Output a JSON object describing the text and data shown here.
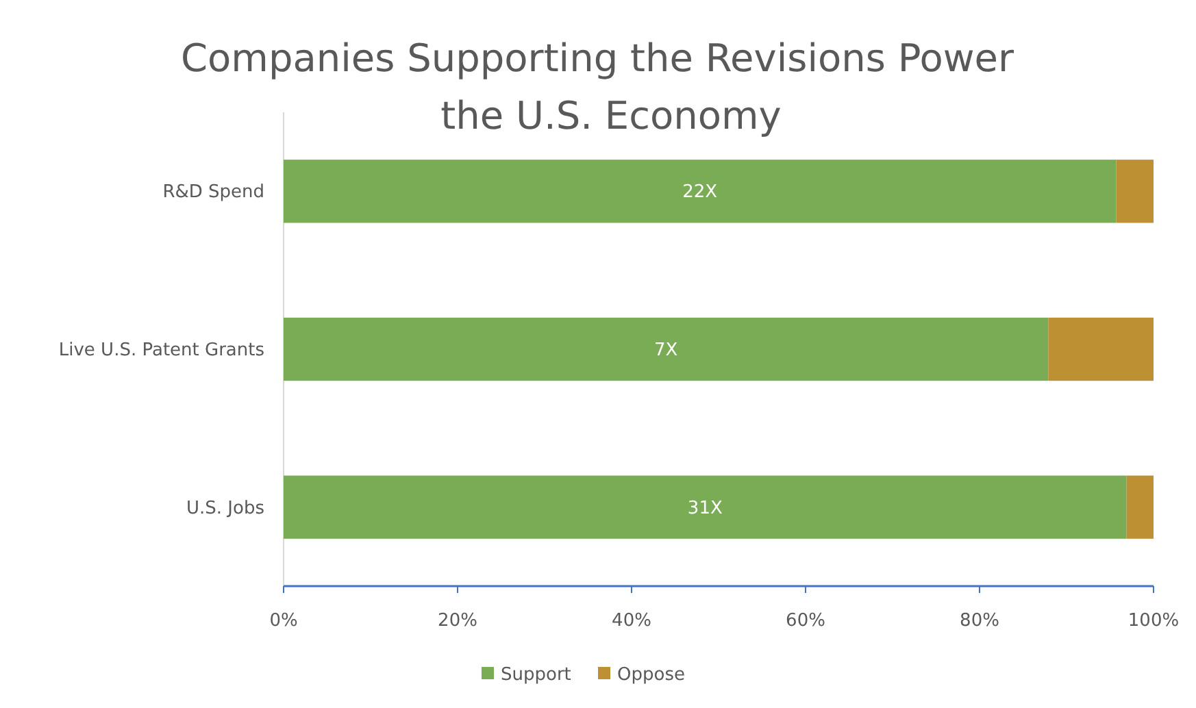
{
  "chart_data": {
    "type": "bar",
    "orientation": "horizontal",
    "stacked": true,
    "title": "Companies Supporting the Revisions Power\nthe U.S. Economy",
    "categories": [
      "R&D Spend",
      "Live U.S. Patent Grants",
      "U.S. Jobs"
    ],
    "series": [
      {
        "name": "Support",
        "color": "#7aab55",
        "values": [
          95.7,
          87.9,
          96.9
        ]
      },
      {
        "name": "Oppose",
        "color": "#bd9133",
        "values": [
          4.3,
          12.1,
          3.1
        ]
      }
    ],
    "xlim": [
      0,
      100
    ],
    "xticks": [
      {
        "value": 0,
        "label": "0%"
      },
      {
        "value": 20,
        "label": "20%"
      },
      {
        "value": 40,
        "label": "40%"
      },
      {
        "value": 60,
        "label": "60%"
      },
      {
        "value": 80,
        "label": "80%"
      },
      {
        "value": 100,
        "label": "100%"
      }
    ],
    "annotations": [
      "22X",
      "7X",
      "31X"
    ],
    "grid": false,
    "legend": "bottom"
  }
}
